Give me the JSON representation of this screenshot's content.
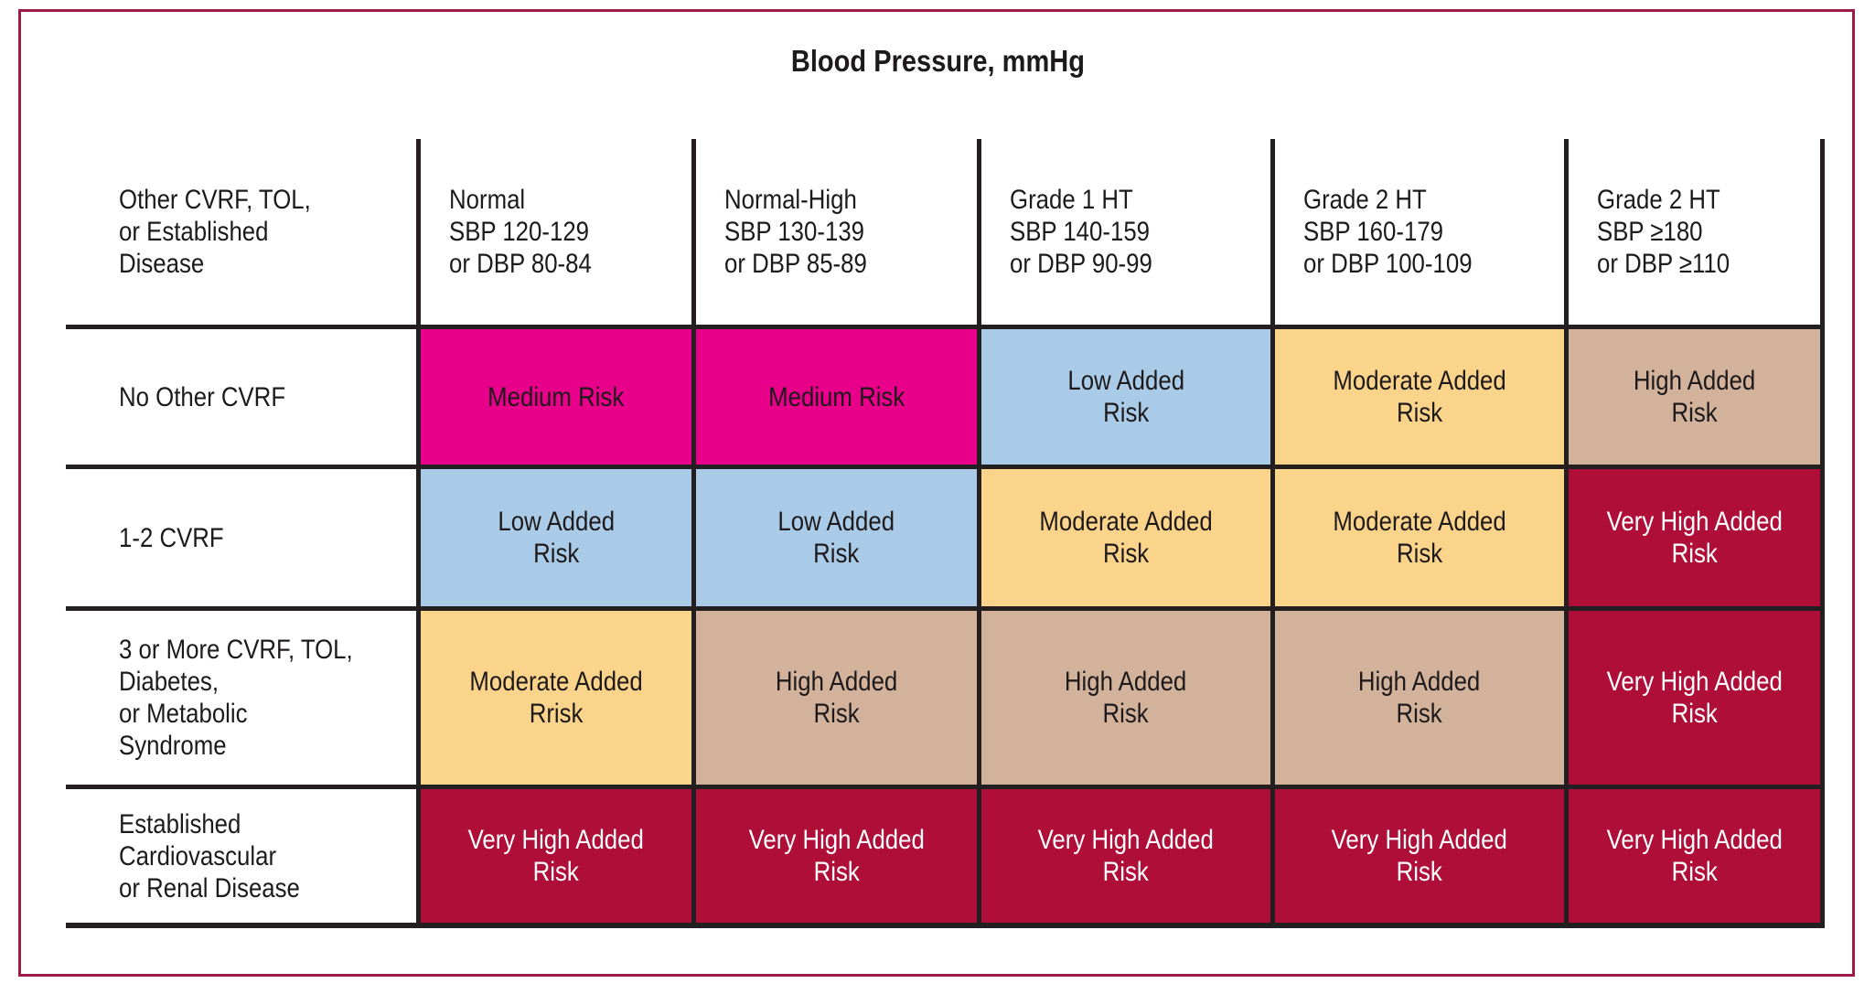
{
  "title": "Blood Pressure, mmHg",
  "table": {
    "corner_header": "Other CVRF, TOL,\nor Established\nDisease",
    "column_headers": [
      "Normal\nSBP 120-129\nor DBP 80-84",
      "Normal-High\nSBP 130-139\nor DBP 85-89",
      "Grade 1 HT\nSBP 140-159\nor DBP 90-99",
      "Grade 2 HT\nSBP 160-179\nor DBP 100-109",
      "Grade 2 HT\nSBP ≥180\nor DBP ≥110"
    ],
    "rows": [
      {
        "label": "No Other CVRF",
        "cells": [
          {
            "text": "Medium Risk",
            "risk": "medium"
          },
          {
            "text": "Medium Risk",
            "risk": "medium"
          },
          {
            "text": "Low Added\nRisk",
            "risk": "low"
          },
          {
            "text": "Moderate Added\nRisk",
            "risk": "moderate"
          },
          {
            "text": "High Added\nRisk",
            "risk": "high"
          }
        ]
      },
      {
        "label": "1-2 CVRF",
        "cells": [
          {
            "text": "Low Added\nRisk",
            "risk": "low"
          },
          {
            "text": "Low Added\nRisk",
            "risk": "low"
          },
          {
            "text": "Moderate Added\nRisk",
            "risk": "moderate"
          },
          {
            "text": "Moderate Added\nRisk",
            "risk": "moderate"
          },
          {
            "text": "Very High Added\nRisk",
            "risk": "very_high"
          }
        ]
      },
      {
        "label": "3 or More CVRF, TOL,\nDiabetes,\nor Metabolic\nSyndrome",
        "cells": [
          {
            "text": "Moderate Added\nRrisk",
            "risk": "moderate"
          },
          {
            "text": "High Added\nRisk",
            "risk": "high"
          },
          {
            "text": "High Added\nRisk",
            "risk": "high"
          },
          {
            "text": "High Added\nRisk",
            "risk": "high"
          },
          {
            "text": "Very High Added\nRisk",
            "risk": "very_high"
          }
        ]
      },
      {
        "label": "Established\nCardiovascular\nor Renal Disease",
        "cells": [
          {
            "text": "Very High Added\nRisk",
            "risk": "very_high"
          },
          {
            "text": "Very High Added\nRisk",
            "risk": "very_high"
          },
          {
            "text": "Very High Added\nRisk",
            "risk": "very_high"
          },
          {
            "text": "Very High Added\nRisk",
            "risk": "very_high"
          },
          {
            "text": "Very High Added\nRisk",
            "risk": "very_high"
          }
        ]
      }
    ]
  },
  "colors": {
    "frame_border": "#9D1C45",
    "grid_line": "#231F20",
    "risk_fill": {
      "medium": "#E9008A",
      "low": "#A9CBE8",
      "moderate": "#FBD48B",
      "high": "#D2B29B",
      "very_high": "#AE0E38"
    },
    "risk_text": {
      "medium": "#1e1a1b",
      "low": "#1e1a1b",
      "moderate": "#1e1a1b",
      "high": "#1e1a1b",
      "very_high": "#FFFFFF"
    }
  }
}
